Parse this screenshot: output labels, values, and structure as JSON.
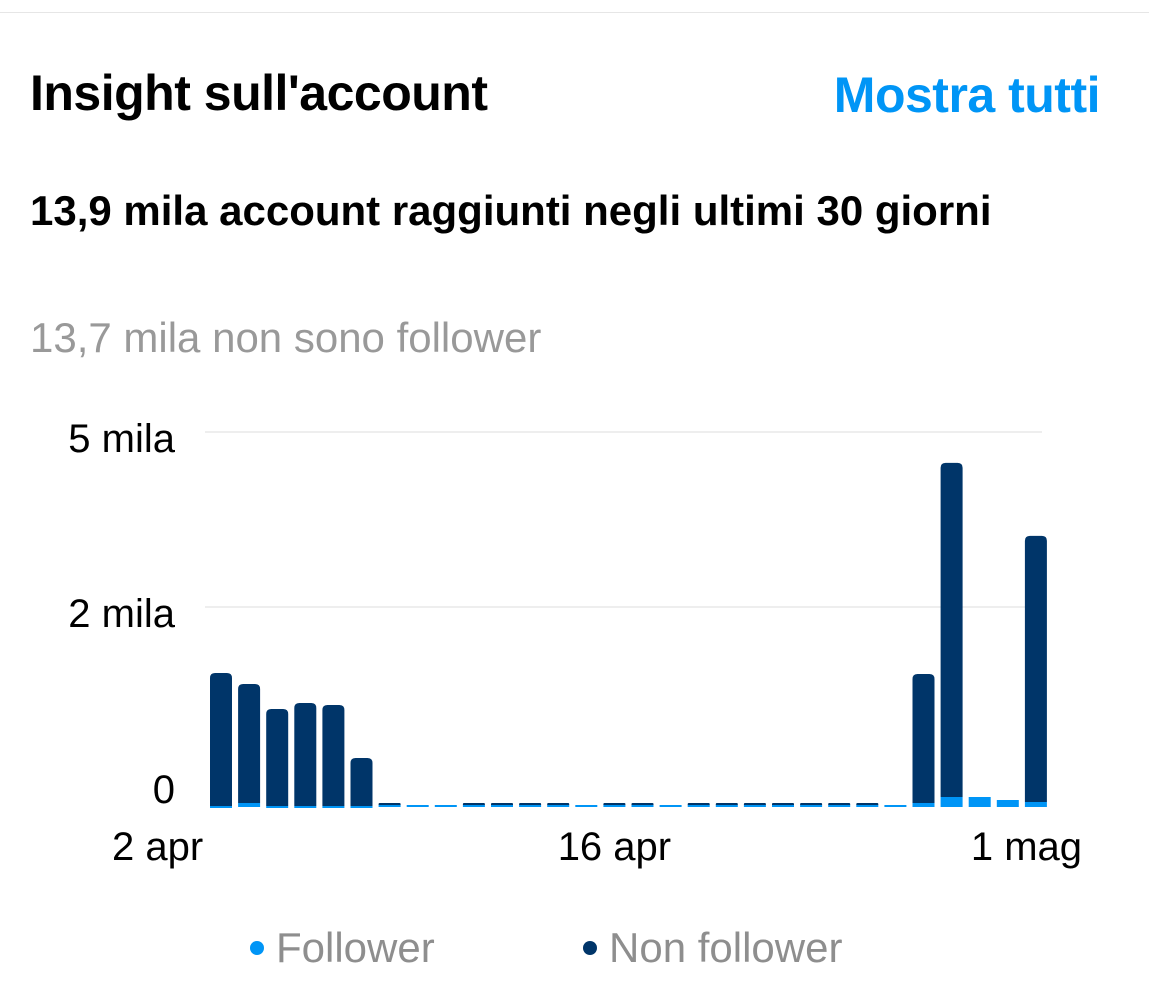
{
  "header": {
    "title": "Insight sull'account",
    "show_all": "Mostra tutti"
  },
  "summary": {
    "headline": "13,9 mila account raggiunti negli ultimi 30 giorni",
    "subtext": "13,7 mila non sono follower"
  },
  "colors": {
    "follower": "#0095f6",
    "non_follower": "#003569",
    "accent": "#0095f6"
  },
  "chart_data": {
    "type": "bar",
    "stacked": true,
    "y_ticks": [
      {
        "value": 0,
        "label": "0"
      },
      {
        "value": 2000,
        "label": "2 mila"
      },
      {
        "value": 5000,
        "label": "5 mila"
      }
    ],
    "x_tick_labels": [
      {
        "day": 1,
        "label": "2 apr"
      },
      {
        "day": 15,
        "label": "16 apr"
      },
      {
        "day": 30,
        "label": "1 mag"
      }
    ],
    "grid": true,
    "legend_position": "bottom",
    "days": 30,
    "series": [
      {
        "name": "Follower",
        "color": "#0095f6",
        "values": [
          10,
          40,
          10,
          10,
          10,
          10,
          20,
          20,
          20,
          20,
          20,
          20,
          20,
          20,
          20,
          20,
          20,
          20,
          20,
          20,
          20,
          20,
          20,
          20,
          20,
          40,
          100,
          100,
          70,
          50
        ]
      },
      {
        "name": "Non follower",
        "color": "#003569",
        "values": [
          1330,
          1190,
          970,
          1030,
          1010,
          480,
          20,
          0,
          0,
          20,
          20,
          20,
          20,
          0,
          20,
          20,
          0,
          20,
          20,
          20,
          20,
          20,
          20,
          20,
          0,
          1290,
          4370,
          0,
          0,
          3170
        ]
      }
    ]
  }
}
